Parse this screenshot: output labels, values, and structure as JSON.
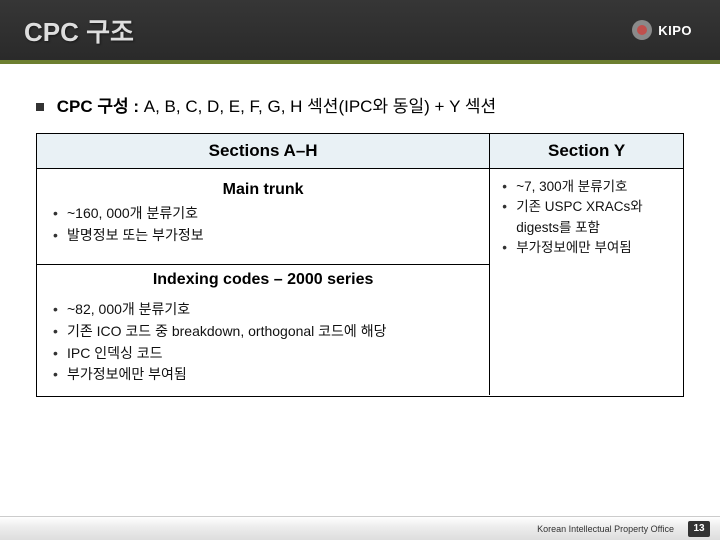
{
  "header": {
    "title": "CPC 구조",
    "logo_text": "KIPO",
    "logo_sub": ""
  },
  "subheader": {
    "prefix": "CPC 구성 :",
    "text": "A, B, C, D, E, F, G, H 섹션(IPC와 동일) + Y 섹션"
  },
  "table": {
    "left_header": "Sections A–H",
    "right_header": "Section Y",
    "main_trunk_label": "Main trunk",
    "main_trunk_items": [
      "~160, 000개 분류기호",
      "발명정보 또는 부가정보"
    ],
    "indexing_label": "Indexing codes – 2000 series",
    "indexing_items": [
      "~82, 000개 분류기호",
      "기존 ICO 코드 중 breakdown, orthogonal 코드에 해당",
      "IPC 인덱싱 코드",
      "부가정보에만 부여됨"
    ],
    "right_items": [
      "~7, 300개 분류기호",
      "기존 USPC XRACs와 digests를 포함",
      "부가정보에만 부여됨"
    ]
  },
  "footer": {
    "org": "Korean Intellectual Property Office",
    "page": "13"
  },
  "colors": {
    "accent_green": "#6d7f30",
    "header_bg": "#2f2f2f",
    "thead_bg": "#e9f1f5",
    "text": "#111111"
  }
}
